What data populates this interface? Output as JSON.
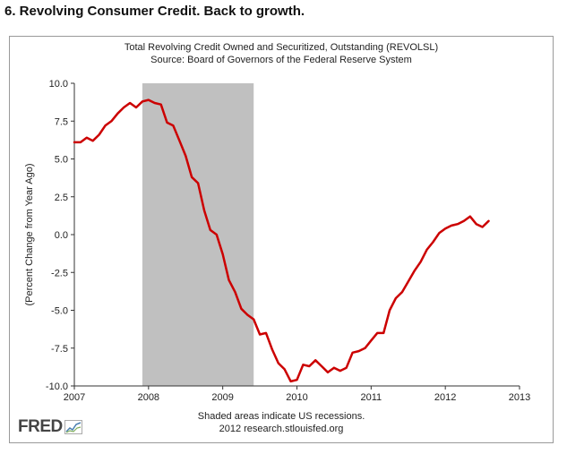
{
  "headline": "6. Revolving Consumer Credit. Back to growth.",
  "chart_data": {
    "type": "line",
    "title": "Total Revolving Credit Owned and Securitized, Outstanding (REVOLSL)",
    "subtitle": "Source: Board of Governors of the Federal Reserve System",
    "ylabel": "(Percent Change from Year Ago)",
    "xlabel": "",
    "xlim": [
      2007,
      2013
    ],
    "ylim": [
      -10,
      10
    ],
    "xticks": [
      2007,
      2008,
      2009,
      2010,
      2011,
      2012,
      2013
    ],
    "yticks": [
      "10.0",
      "7.5",
      "5.0",
      "2.5",
      "0.0",
      "-2.5",
      "-5.0",
      "-7.5",
      "-10.0"
    ],
    "grid": false,
    "recession": {
      "start": 2007.917,
      "end": 2009.417,
      "color": "#c0c0c0"
    },
    "series": [
      {
        "color": "#cc0000",
        "x": [
          2007.0,
          2007.083,
          2007.167,
          2007.25,
          2007.333,
          2007.417,
          2007.5,
          2007.583,
          2007.667,
          2007.75,
          2007.833,
          2007.917,
          2008.0,
          2008.083,
          2008.167,
          2008.25,
          2008.333,
          2008.417,
          2008.5,
          2008.583,
          2008.667,
          2008.75,
          2008.833,
          2008.917,
          2009.0,
          2009.083,
          2009.167,
          2009.25,
          2009.333,
          2009.417,
          2009.5,
          2009.583,
          2009.667,
          2009.75,
          2009.833,
          2009.917,
          2010.0,
          2010.083,
          2010.167,
          2010.25,
          2010.333,
          2010.417,
          2010.5,
          2010.583,
          2010.667,
          2010.75,
          2010.833,
          2010.917,
          2011.0,
          2011.083,
          2011.167,
          2011.25,
          2011.333,
          2011.417,
          2011.5,
          2011.583,
          2011.667,
          2011.75,
          2011.833,
          2011.917,
          2012.0,
          2012.083,
          2012.167,
          2012.25,
          2012.333,
          2012.417,
          2012.5,
          2012.583
        ],
        "values": [
          6.1,
          6.1,
          6.4,
          6.2,
          6.6,
          7.2,
          7.5,
          8.0,
          8.4,
          8.7,
          8.4,
          8.8,
          8.9,
          8.7,
          8.6,
          7.4,
          7.2,
          6.2,
          5.2,
          3.8,
          3.4,
          1.6,
          0.3,
          0.0,
          -1.3,
          -3.0,
          -3.8,
          -4.9,
          -5.3,
          -5.6,
          -6.6,
          -6.5,
          -7.6,
          -8.5,
          -8.9,
          -9.7,
          -9.6,
          -8.6,
          -8.7,
          -8.3,
          -8.7,
          -9.1,
          -8.8,
          -9.0,
          -8.8,
          -7.8,
          -7.7,
          -7.5,
          -7.0,
          -6.5,
          -6.5,
          -5.0,
          -4.2,
          -3.8,
          -3.1,
          -2.4,
          -1.8,
          -1.0,
          -0.5,
          0.1,
          0.4,
          0.6,
          0.7,
          0.9,
          1.2,
          0.7,
          0.5,
          0.9
        ]
      }
    ]
  },
  "footer": {
    "recession_note": "Shaded areas indicate US recessions.",
    "source_note": "2012 research.stlouisfed.org",
    "logo_text": "FRED"
  }
}
